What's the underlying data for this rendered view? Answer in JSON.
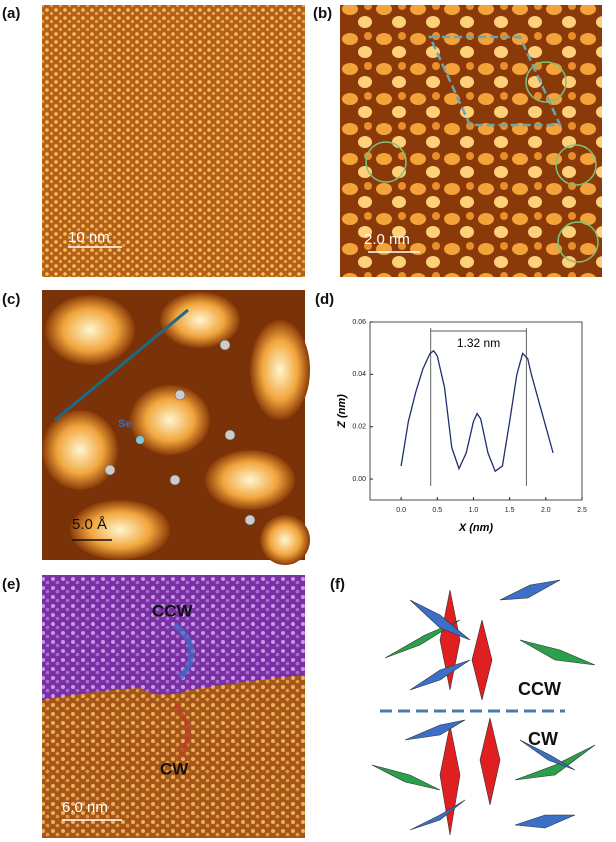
{
  "panels": [
    {
      "label": "(a)",
      "scale_bar": "10 nm"
    },
    {
      "label": "(b)",
      "scale_bar": "2.0 nm"
    },
    {
      "label": "(c)",
      "scale_bar": "5.0 Å",
      "atom_label": "Se"
    },
    {
      "label": "(d)"
    },
    {
      "label": "(e)",
      "scale_bar": "6.0 nm",
      "annotations": [
        "CCW",
        "CW"
      ]
    },
    {
      "label": "(f)",
      "annotations": [
        "CCW",
        "CW"
      ]
    }
  ],
  "chart_data": {
    "type": "line",
    "xlabel": "X (nm)",
    "ylabel": "Z (nm)",
    "x": [
      0,
      0.1,
      0.2,
      0.3,
      0.4,
      0.45,
      0.5,
      0.6,
      0.7,
      0.8,
      0.9,
      1.0,
      1.05,
      1.1,
      1.2,
      1.3,
      1.4,
      1.5,
      1.6,
      1.68,
      1.75,
      1.8,
      1.9,
      2.0,
      2.1
    ],
    "series": [
      {
        "color": "#1f2f6e",
        "values": [
          0.005,
          0.022,
          0.033,
          0.042,
          0.048,
          0.049,
          0.047,
          0.035,
          0.012,
          0.004,
          0.01,
          0.022,
          0.025,
          0.023,
          0.01,
          0.003,
          0.005,
          0.022,
          0.04,
          0.048,
          0.046,
          0.04,
          0.03,
          0.02,
          0.01
        ]
      }
    ],
    "markers": [
      0.41,
      1.73
    ],
    "marker_label": "1.32 nm",
    "xlim": [
      -0.43,
      2.5
    ],
    "ylim": [
      -0.008,
      0.06
    ],
    "xticks": [
      {
        "value": 0,
        "label": "0.0"
      },
      {
        "value": 0.5,
        "label": "0.5"
      },
      {
        "value": 1,
        "label": "1.0"
      },
      {
        "value": 1.5,
        "label": "1.5"
      },
      {
        "value": 2,
        "label": "2.0"
      },
      {
        "value": 2.5,
        "label": "2.5"
      }
    ],
    "yticks": [
      {
        "value": 0,
        "label": "0.00"
      },
      {
        "value": 0.02,
        "label": "0.02"
      },
      {
        "value": 0.04,
        "label": "0.04"
      },
      {
        "value": 0.06,
        "label": "0.06"
      }
    ]
  }
}
